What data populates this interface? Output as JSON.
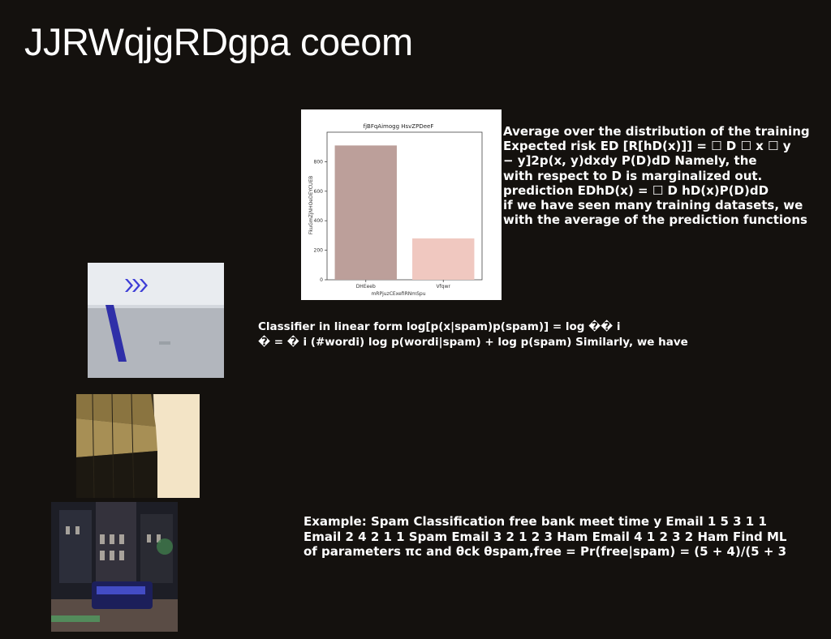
{
  "slide": {
    "title": "JJRWqjgRDgpa coeom",
    "paragraph1": "Average over the distribution of the training\nExpected risk ED [R[hD(x)]] = ☐ D ☐ x ☐ y\n− y]2p(x, y)dxdy P(D)dD Namely, the\nwith respect to D is marginalized out.\nprediction EDhD(x) = ☐ D hD(x)P(D)dD\nif we have seen many training datasets, we\nwith the average of the prediction functions",
    "paragraph2": "Classifier in linear form log[p(x|spam)p(spam)] = log �� i\n� = � i (#wordi) log p(wordi|spam) + log p(spam) Similarly, we have",
    "paragraph3": "Example: Spam Classification free bank meet time y Email 1 5 3 1 1\nEmail 2 4 2 1 1 Spam Email 3 2 1 2 3 Ham Email 4 1 2 3 2 Ham Find ML\nof parameters πc and θck θspam,free = Pr(free|spam) = (5 + 4)/(5 + 3"
  },
  "chart_data": {
    "type": "bar",
    "title": "fjBFqAimogg HsvZPDeeF",
    "xlabel": "mRPjuzCExefIRNmSpu",
    "ylabel": "FkuGmZjNHOeDEYCUEB",
    "categories": [
      "DHEeeb",
      "Vfqwr"
    ],
    "values": [
      910,
      280
    ],
    "colors": [
      "#bc9f9a",
      "#f0c8c0"
    ],
    "ylim": [
      0,
      1000
    ],
    "yticks": [
      0,
      200,
      400,
      600,
      800
    ],
    "grid": false
  }
}
